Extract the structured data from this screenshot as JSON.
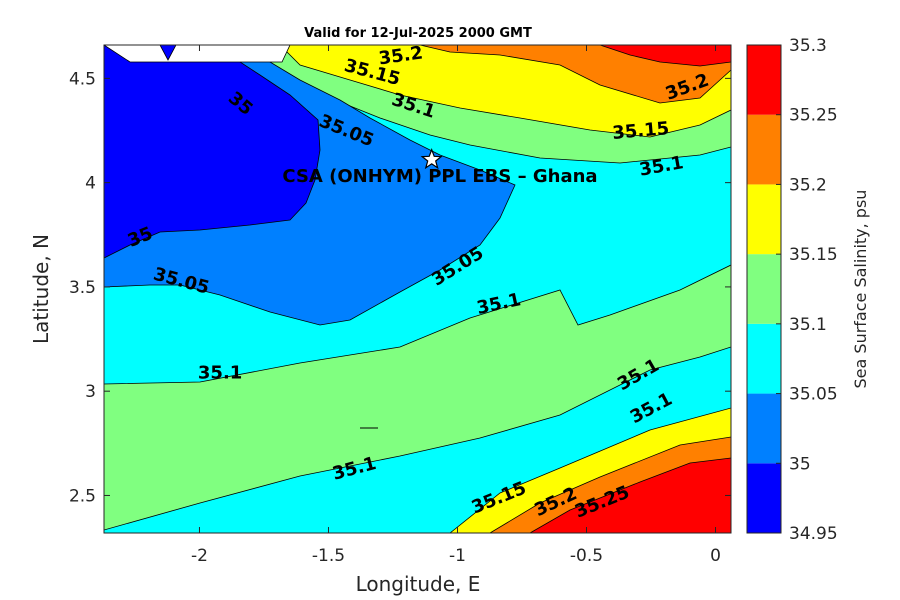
{
  "title": "Valid for 12-Jul-2025 2000 GMT",
  "xlabel": "Longitude, E",
  "ylabel": "Latitude, N",
  "colorbar_label": "Sea Surface Salinity, psu",
  "site_label": "CSA (ONHYM) PPL EBS  – Ghana",
  "site": {
    "lon": -1.1,
    "lat": 4.11,
    "marker": "star-icon"
  },
  "x_ticks": [
    {
      "value": -2,
      "label": "-2"
    },
    {
      "value": -1.5,
      "label": "-1.5"
    },
    {
      "value": -1,
      "label": "-1"
    },
    {
      "value": -0.5,
      "label": "-0.5"
    },
    {
      "value": 0,
      "label": "0"
    }
  ],
  "y_ticks": [
    {
      "value": 2.5,
      "label": "2.5"
    },
    {
      "value": 3,
      "label": "3"
    },
    {
      "value": 3.5,
      "label": "3.5"
    },
    {
      "value": 4,
      "label": "4"
    },
    {
      "value": 4.5,
      "label": "4.5"
    }
  ],
  "colorbar": {
    "levels": [
      34.95,
      35,
      35.05,
      35.1,
      35.15,
      35.2,
      35.25,
      35.3
    ],
    "tick_labels": [
      "34.95",
      "35",
      "35.05",
      "35.1",
      "35.15",
      "35.2",
      "35.25",
      "35.3"
    ],
    "colors": [
      "#0000ff",
      "#0080ff",
      "#00ffff",
      "#80ff80",
      "#ffff00",
      "#ff8000",
      "#ff0000"
    ]
  },
  "contour_labels": [
    {
      "text": "35.2",
      "lon": -1.22,
      "lat": 4.61,
      "angle": -8
    },
    {
      "text": "35.15",
      "lon": -1.33,
      "lat": 4.53,
      "angle": 15
    },
    {
      "text": "35.1",
      "lon": -1.17,
      "lat": 4.37,
      "angle": 18
    },
    {
      "text": "35.05",
      "lon": -1.43,
      "lat": 4.25,
      "angle": 22
    },
    {
      "text": "35",
      "lon": -1.84,
      "lat": 4.38,
      "angle": 40
    },
    {
      "text": "35.2",
      "lon": -0.11,
      "lat": 4.46,
      "angle": -20
    },
    {
      "text": "35.15",
      "lon": -0.29,
      "lat": 4.25,
      "angle": -5
    },
    {
      "text": "35.1",
      "lon": -0.21,
      "lat": 4.08,
      "angle": -10
    },
    {
      "text": "35",
      "lon": -2.23,
      "lat": 3.74,
      "angle": -22
    },
    {
      "text": "35.05",
      "lon": -2.07,
      "lat": 3.53,
      "angle": 15
    },
    {
      "text": "35.05",
      "lon": -1.0,
      "lat": 3.6,
      "angle": -32
    },
    {
      "text": "35.1",
      "lon": -0.84,
      "lat": 3.42,
      "angle": -12
    },
    {
      "text": "35.1",
      "lon": -1.92,
      "lat": 3.09,
      "angle": 0
    },
    {
      "text": "35.1",
      "lon": -0.3,
      "lat": 3.08,
      "angle": -30
    },
    {
      "text": "35.1",
      "lon": -0.25,
      "lat": 2.92,
      "angle": -28
    },
    {
      "text": "35.1",
      "lon": -1.4,
      "lat": 2.63,
      "angle": -15
    },
    {
      "text": "35.15",
      "lon": -0.84,
      "lat": 2.49,
      "angle": -22
    },
    {
      "text": "35.2",
      "lon": -0.62,
      "lat": 2.47,
      "angle": -25
    },
    {
      "text": "35.25",
      "lon": -0.44,
      "lat": 2.47,
      "angle": -22
    }
  ]
}
